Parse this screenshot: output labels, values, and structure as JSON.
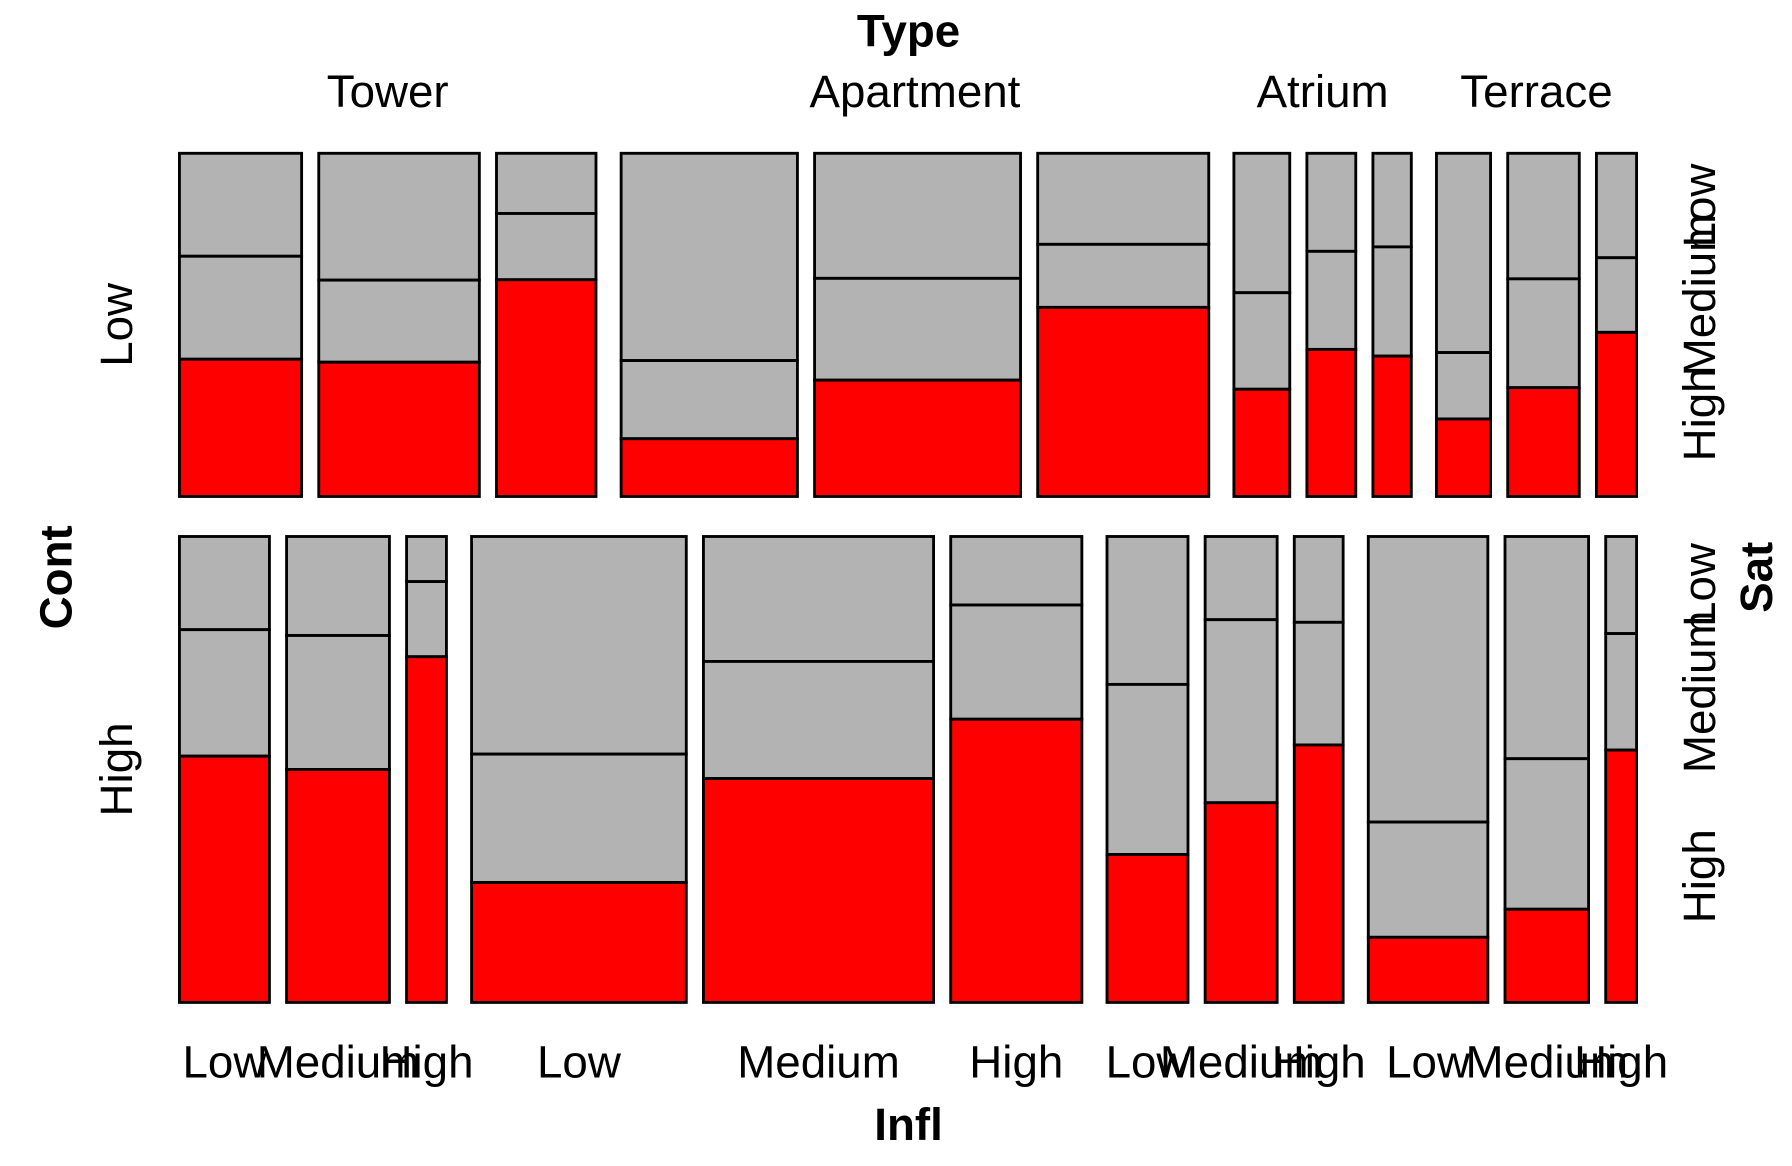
{
  "chart_data": {
    "type": "mosaic",
    "top_label": "Type",
    "x_label": "Infl",
    "y_label": "Cont",
    "right_label": "Sat",
    "cont": [
      "Low",
      "High"
    ],
    "types": [
      "Tower",
      "Apartment",
      "Atrium",
      "Terrace"
    ],
    "infl": [
      "Low",
      "Medium",
      "High"
    ],
    "sat": [
      "Low",
      "Medium",
      "High"
    ],
    "colors": [
      "#b3b3b3",
      "#b3b3b3",
      "#ff0000"
    ],
    "freq": [
      [
        [
          [
            21,
            21,
            28
          ],
          [
            34,
            22,
            36
          ],
          [
            10,
            11,
            36
          ]
        ],
        [
          [
            61,
            23,
            17
          ],
          [
            43,
            35,
            40
          ],
          [
            26,
            18,
            54
          ]
        ],
        [
          [
            13,
            9,
            10
          ],
          [
            8,
            8,
            12
          ],
          [
            6,
            7,
            9
          ]
        ],
        [
          [
            18,
            6,
            7
          ],
          [
            15,
            13,
            13
          ],
          [
            7,
            5,
            11
          ]
        ]
      ],
      [
        [
          [
            14,
            19,
            37
          ],
          [
            17,
            23,
            40
          ],
          [
            3,
            5,
            23
          ]
        ],
        [
          [
            78,
            46,
            43
          ],
          [
            48,
            45,
            86
          ],
          [
            15,
            25,
            62
          ]
        ],
        [
          [
            20,
            23,
            20
          ],
          [
            10,
            22,
            24
          ],
          [
            7,
            10,
            21
          ]
        ],
        [
          [
            57,
            23,
            13
          ],
          [
            31,
            21,
            13
          ],
          [
            5,
            6,
            13
          ]
        ]
      ]
    ]
  }
}
